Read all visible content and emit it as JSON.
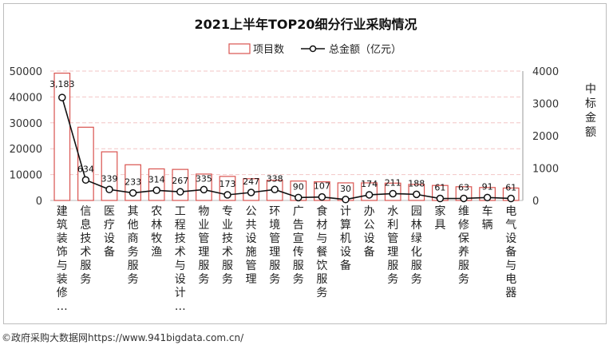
{
  "chart_data": {
    "type": "bar",
    "title": "2021上半年TOP20细分行业采购情况",
    "categories": [
      "建筑装饰与装修…",
      "信息技术服务",
      "医疗设备",
      "其他商务服务",
      "农林牧渔",
      "工程技术与设计…",
      "物业管理服务",
      "专业技术服务",
      "公共设施管理",
      "环境管理服务",
      "广告宣传服务",
      "食材与餐饮服务",
      "计算机设备",
      "办公设备",
      "水利管理服务",
      "园林绿化服务",
      "家具",
      "维修保养服务",
      "车辆",
      "电气设备与电器"
    ],
    "series": [
      {
        "name": "项目数",
        "type": "bar",
        "axis": "left",
        "values": [
          49200,
          28300,
          18800,
          13800,
          12200,
          12000,
          10200,
          9300,
          8400,
          7800,
          7500,
          7200,
          6800,
          6800,
          6700,
          6200,
          5800,
          5300,
          5000,
          4800
        ]
      },
      {
        "name": "总金额（亿元）",
        "type": "line",
        "axis": "right",
        "values": [
          3183,
          634,
          339,
          233,
          314,
          267,
          335,
          173,
          247,
          338,
          90,
          107,
          30,
          174,
          211,
          188,
          61,
          63,
          91,
          61
        ],
        "labels": [
          "3,183",
          "634",
          "339",
          "233",
          "314",
          "267",
          "335",
          "173",
          "247",
          "338",
          "90",
          "107",
          "30",
          "174",
          "211",
          "188",
          "61",
          "63",
          "91",
          "61"
        ]
      }
    ],
    "y_left": {
      "ylim": [
        0,
        50000
      ],
      "ticks": [
        "0",
        "10000",
        "20000",
        "30000",
        "40000",
        "50000"
      ]
    },
    "y_right": {
      "ylim": [
        0,
        4000
      ],
      "ticks": [
        "0",
        "1000",
        "2000",
        "3000",
        "4000"
      ],
      "label": "中标金额"
    },
    "legend": {
      "position": "top-center",
      "items": [
        "项目数",
        "总金额（亿元）"
      ]
    },
    "grid": "dashed-horizontal",
    "colors": {
      "bar_stroke": "#d9534f",
      "bar_fill": "#ffffff",
      "line": "#111111",
      "marker_fill": "#ffffff",
      "grid": "#f2c6c6"
    }
  },
  "footer": "©政府采购大数据网https://www.941bigdata.com.cn/"
}
